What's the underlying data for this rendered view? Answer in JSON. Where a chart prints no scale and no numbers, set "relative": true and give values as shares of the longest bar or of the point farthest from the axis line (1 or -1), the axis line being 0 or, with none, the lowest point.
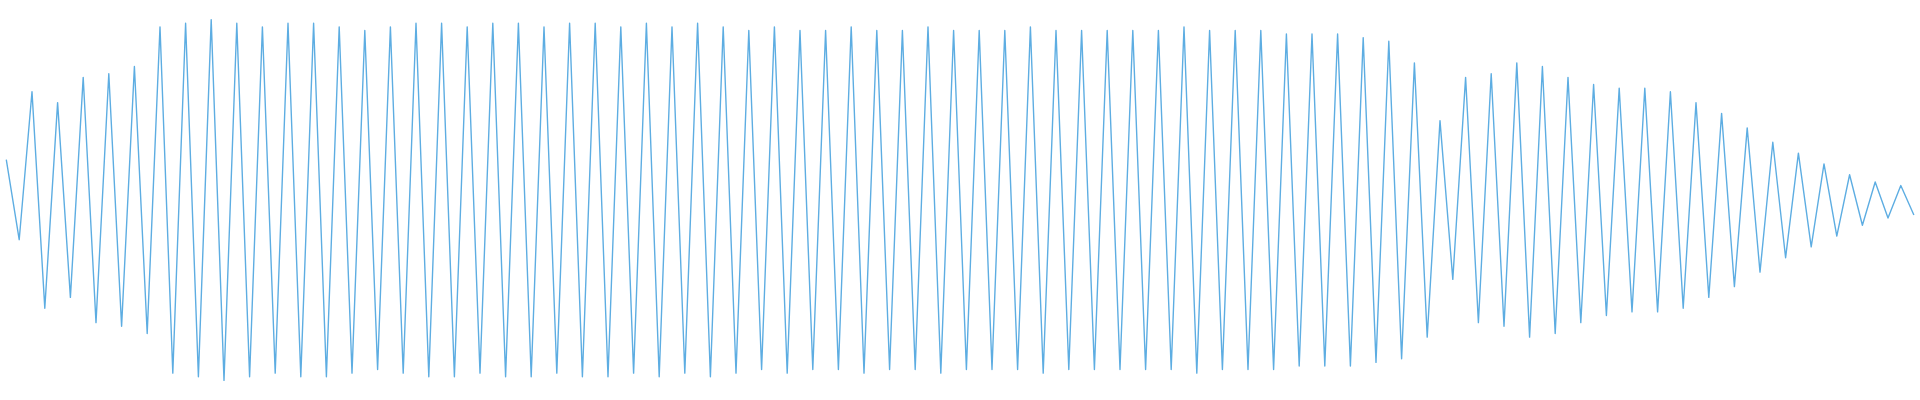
{
  "chart_data": {
    "type": "line",
    "relative": true,
    "line_style": "solid",
    "categories": [
      null,
      null,
      null,
      null,
      null,
      null,
      null,
      null,
      null,
      null,
      null,
      null,
      null,
      null,
      null,
      null,
      null,
      null,
      null,
      null,
      null,
      null,
      null,
      null,
      null,
      null,
      null,
      null,
      null,
      null,
      null,
      null,
      null,
      null,
      null,
      null,
      null,
      null,
      null,
      null,
      null,
      null,
      null,
      null,
      null,
      null,
      null,
      null,
      null,
      null,
      null,
      null,
      null,
      null,
      null,
      null,
      null,
      null,
      null,
      null,
      null,
      null,
      null,
      null,
      null,
      null,
      null,
      null,
      null,
      null,
      null,
      null,
      null,
      null,
      null,
      null,
      null,
      null,
      null,
      null,
      null,
      null,
      null,
      null,
      null,
      null,
      null,
      null,
      null,
      null,
      null,
      null,
      null,
      null,
      null,
      null,
      null,
      null,
      null,
      null,
      null,
      null,
      null,
      null,
      null,
      null,
      null,
      null,
      null,
      null,
      null,
      null,
      null,
      null,
      null,
      null,
      null,
      null,
      null,
      null,
      null,
      null,
      null,
      null,
      null,
      null,
      null,
      null,
      null,
      null,
      null,
      null,
      null,
      null,
      null,
      null,
      null,
      null,
      null,
      null,
      null,
      null,
      null,
      null,
      null,
      null,
      null,
      null,
      null,
      null
    ],
    "series": [
      {
        "color": "#5dade2",
        "values": [
          0.61,
          0.39,
          0.8,
          0.2,
          0.77,
          0.23,
          0.84,
          0.16,
          0.85,
          0.15,
          0.87,
          0.13,
          0.98,
          0.02,
          0.99,
          0.01,
          1,
          0,
          0.99,
          0.01,
          0.98,
          0.02,
          0.99,
          0.01,
          0.99,
          0.01,
          0.98,
          0.02,
          0.97,
          0.03,
          0.98,
          0.02,
          0.99,
          0.01,
          0.99,
          0.01,
          0.98,
          0.02,
          0.99,
          0.01,
          0.99,
          0.01,
          0.98,
          0.02,
          0.99,
          0.01,
          0.99,
          0.01,
          0.98,
          0.02,
          0.99,
          0.01,
          0.98,
          0.02,
          0.99,
          0.01,
          0.98,
          0.02,
          0.97,
          0.03,
          0.98,
          0.02,
          0.97,
          0.03,
          0.97,
          0.03,
          0.98,
          0.02,
          0.97,
          0.03,
          0.97,
          0.03,
          0.98,
          0.02,
          0.97,
          0.03,
          0.97,
          0.03,
          0.97,
          0.03,
          0.98,
          0.02,
          0.97,
          0.03,
          0.97,
          0.03,
          0.97,
          0.03,
          0.97,
          0.03,
          0.97,
          0.03,
          0.98,
          0.02,
          0.97,
          0.03,
          0.97,
          0.03,
          0.97,
          0.03,
          0.96,
          0.04,
          0.96,
          0.04,
          0.96,
          0.04,
          0.95,
          0.05,
          0.94,
          0.06,
          0.88,
          0.12,
          0.72,
          0.28,
          0.84,
          0.16,
          0.85,
          0.15,
          0.88,
          0.12,
          0.87,
          0.13,
          0.84,
          0.16,
          0.82,
          0.18,
          0.81,
          0.19,
          0.81,
          0.19,
          0.8,
          0.2,
          0.77,
          0.23,
          0.74,
          0.26,
          0.7,
          0.3,
          0.66,
          0.34,
          0.63,
          0.37,
          0.6,
          0.4,
          0.57,
          0.43,
          0.55,
          0.45,
          0.54,
          0.46
        ]
      }
    ]
  }
}
